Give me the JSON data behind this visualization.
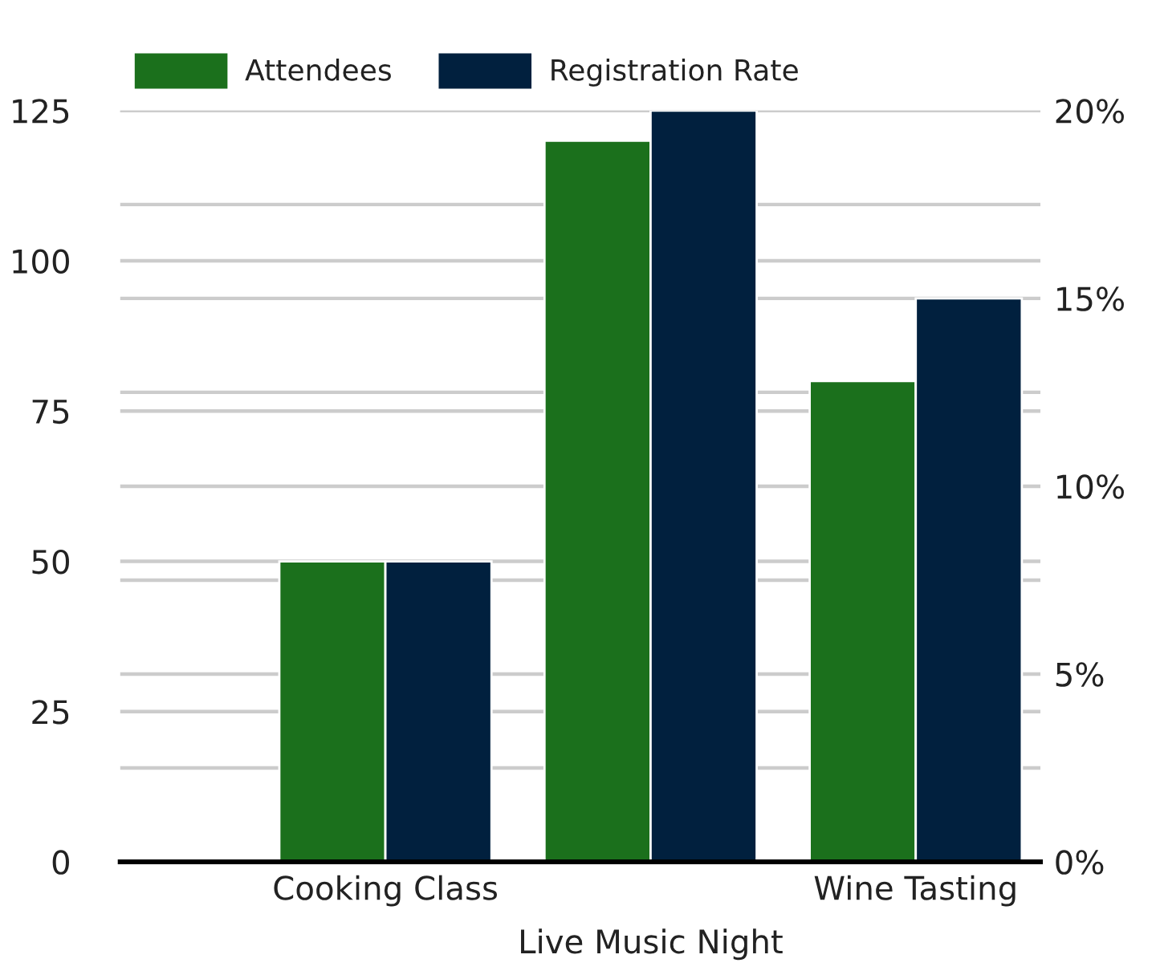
{
  "chart_data": {
    "type": "bar",
    "categories": [
      "Cooking Class",
      "Live Music Night",
      "Wine Tasting"
    ],
    "series": [
      {
        "name": "Attendees",
        "color": "#1b701c",
        "values": [
          50,
          120,
          80
        ]
      },
      {
        "name": "Registration Rate",
        "color": "#01203e",
        "values": [
          8,
          20,
          15
        ],
        "axis": "y2"
      }
    ],
    "ylim": [
      0,
      125
    ],
    "yticks": [
      0,
      25,
      50,
      75,
      100,
      125
    ],
    "y2lim": [
      0,
      20
    ],
    "y2ticks": [
      {
        "value": 0,
        "label": "0%"
      },
      {
        "value": 2.5,
        "label": null
      },
      {
        "value": 5,
        "label": "5%"
      },
      {
        "value": 7.5,
        "label": null
      },
      {
        "value": 10,
        "label": "10%"
      },
      {
        "value": 12.5,
        "label": null
      },
      {
        "value": 15,
        "label": "15%"
      },
      {
        "value": 17.5,
        "label": null
      },
      {
        "value": 20,
        "label": "20%"
      }
    ],
    "grid": true,
    "legend": "top left"
  }
}
